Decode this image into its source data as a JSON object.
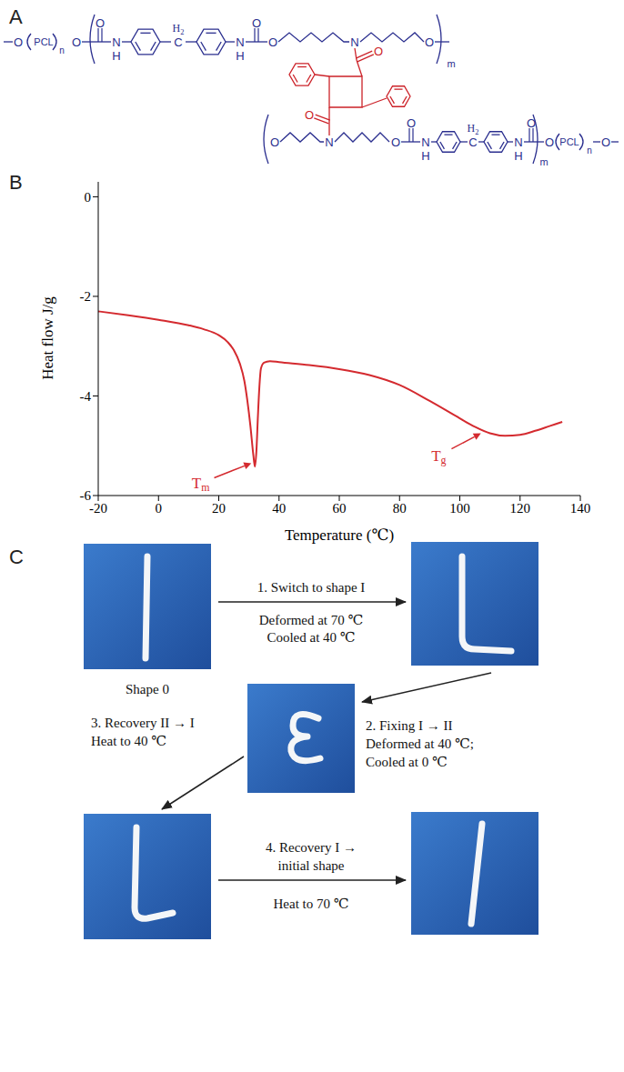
{
  "panel_labels": [
    "A",
    "B",
    "C"
  ],
  "structure": {
    "polymer": "PCL",
    "repeat_n": "n",
    "repeat_m": "m",
    "oxygen": "O",
    "nitrogen": "N",
    "hydrogen": "H",
    "carbon": "C",
    "methylene": "H2"
  },
  "chart_data": {
    "type": "line",
    "x": [
      -20,
      -10,
      0,
      10,
      15,
      20,
      23,
      25,
      27,
      28.5,
      29.5,
      30.5,
      31.5,
      32,
      32.5,
      33,
      33.5,
      34,
      35,
      37,
      40,
      50,
      60,
      70,
      80,
      90,
      100,
      105,
      110,
      115,
      120,
      125,
      130,
      134
    ],
    "values": [
      -2.3,
      -2.38,
      -2.47,
      -2.58,
      -2.66,
      -2.78,
      -2.92,
      -3.08,
      -3.35,
      -3.7,
      -4.1,
      -4.6,
      -5.2,
      -5.42,
      -5.1,
      -4.4,
      -3.8,
      -3.45,
      -3.33,
      -3.3,
      -3.32,
      -3.38,
      -3.46,
      -3.58,
      -3.78,
      -4.1,
      -4.45,
      -4.62,
      -4.75,
      -4.8,
      -4.78,
      -4.7,
      -4.6,
      -4.52
    ],
    "color": "#d42a2f",
    "xlim": [
      -20,
      140
    ],
    "xticks": [
      -20,
      0,
      20,
      40,
      60,
      80,
      100,
      120,
      140
    ],
    "ylim": [
      -6,
      0.3
    ],
    "yticks": [
      -6,
      -4,
      -2,
      0
    ],
    "x_label": "Temperature (℃)",
    "y_label": "Heat flow J/g",
    "grid": false,
    "annotations": [
      {
        "text": "Tm",
        "x": 14,
        "y": -5.75,
        "arrow_x": 30.8,
        "arrow_y": -5.35
      },
      {
        "text": "Tg",
        "x": 93,
        "y": -5.2,
        "arrow_x": 107,
        "arrow_y": -4.75
      }
    ]
  },
  "diagram": {
    "start_label": "Shape 0",
    "steps": [
      {
        "lines": [
          "1. Switch to shape I",
          "Deformed at 70 ℃",
          "Cooled at 40 ℃"
        ]
      },
      {
        "lines": [
          "2. Fixing I → II",
          "Deformed at 40 ℃;",
          "Cooled at 0 ℃"
        ]
      },
      {
        "lines": [
          "3. Recovery II → I",
          "Heat to 40 ℃"
        ]
      },
      {
        "lines": [
          "4. Recovery I →",
          "initial shape",
          "Heat to 70 ℃"
        ]
      }
    ]
  }
}
